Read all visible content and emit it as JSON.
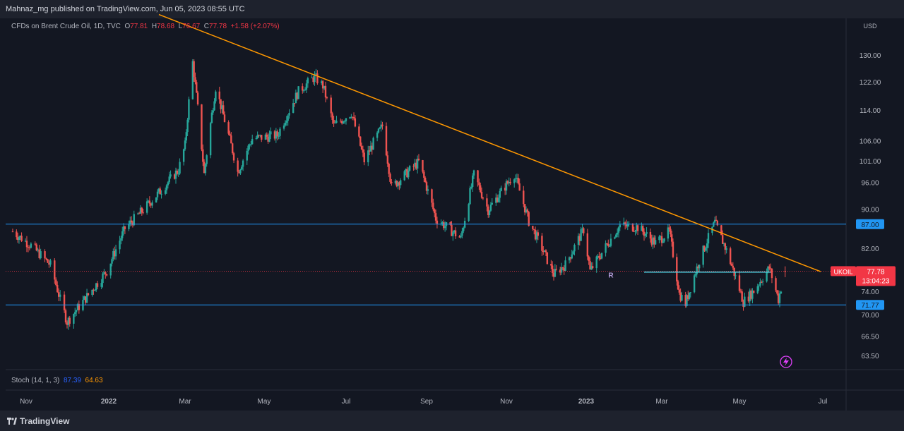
{
  "header": {
    "publisher": "Mahnaz_mg published on TradingView.com, Jun 05, 2023 08:55 UTC"
  },
  "legend": {
    "symbol": "CFDs on Brent Crude Oil, 1D, TVC",
    "open_label": "O",
    "open": "77.81",
    "high_label": "H",
    "high": "78.68",
    "low_label": "L",
    "low": "76.67",
    "close_label": "C",
    "close": "77.78",
    "change": "+1.58 (+2.07%)"
  },
  "stoch": {
    "label": "Stoch (14, 1, 3)",
    "k": "87.39",
    "d": "64.63"
  },
  "footer": {
    "brand": "TradingView"
  },
  "colors": {
    "background": "#131722",
    "up": "#26a69a",
    "down": "#ef5350",
    "trendline": "#ff9800",
    "hline": "#2196f3",
    "price_label": "#f23645"
  },
  "chart_data": {
    "type": "candlestick",
    "currency": "USD",
    "y_scale": "log",
    "yticks": [
      "130.00",
      "122.00",
      "114.00",
      "106.00",
      "101.00",
      "96.00",
      "90.00",
      "82.00",
      "74.00",
      "70.00",
      "66.50",
      "63.50"
    ],
    "xticks": [
      "Nov",
      "2022",
      "Mar",
      "May",
      "Jul",
      "Sep",
      "Nov",
      "2023",
      "Mar",
      "May",
      "Jul"
    ],
    "close_series": [
      [
        "2021-10-22",
        85.5
      ],
      [
        "2021-11-05",
        82.7
      ],
      [
        "2021-11-19",
        78.9
      ],
      [
        "2021-11-26",
        72.7
      ],
      [
        "2021-12-01",
        68.9
      ],
      [
        "2021-12-17",
        73.5
      ],
      [
        "2021-12-31",
        77.8
      ],
      [
        "2022-01-14",
        86.1
      ],
      [
        "2022-01-28",
        90.0
      ],
      [
        "2022-02-11",
        94.4
      ],
      [
        "2022-02-24",
        99.0
      ],
      [
        "2022-03-01",
        105.0
      ],
      [
        "2022-03-07",
        127.98
      ],
      [
        "2022-03-16",
        98.0
      ],
      [
        "2022-03-25",
        120.6
      ],
      [
        "2022-04-11",
        98.5
      ],
      [
        "2022-04-22",
        106.7
      ],
      [
        "2022-05-11",
        107.5
      ],
      [
        "2022-05-27",
        119.4
      ],
      [
        "2022-06-08",
        123.6
      ],
      [
        "2022-06-14",
        121.0
      ],
      [
        "2022-06-22",
        110.0
      ],
      [
        "2022-07-05",
        113.5
      ],
      [
        "2022-07-15",
        101.2
      ],
      [
        "2022-07-29",
        110.0
      ],
      [
        "2022-08-05",
        95.0
      ],
      [
        "2022-08-26",
        100.9
      ],
      [
        "2022-09-08",
        88.2
      ],
      [
        "2022-09-27",
        84.1
      ],
      [
        "2022-10-07",
        97.9
      ],
      [
        "2022-10-18",
        90.0
      ],
      [
        "2022-11-07",
        98.0
      ],
      [
        "2022-11-18",
        87.6
      ],
      [
        "2022-12-07",
        77.2
      ],
      [
        "2022-12-16",
        79.0
      ],
      [
        "2022-12-30",
        85.9
      ],
      [
        "2023-01-04",
        77.8
      ],
      [
        "2023-01-27",
        86.7
      ],
      [
        "2023-02-10",
        86.4
      ],
      [
        "2023-02-24",
        83.2
      ],
      [
        "2023-03-07",
        85.5
      ],
      [
        "2023-03-15",
        73.7
      ],
      [
        "2023-03-20",
        72.0
      ],
      [
        "2023-03-31",
        79.8
      ],
      [
        "2023-04-12",
        87.3
      ],
      [
        "2023-04-21",
        81.7
      ],
      [
        "2023-05-04",
        72.3
      ],
      [
        "2023-05-12",
        74.2
      ],
      [
        "2023-05-24",
        78.4
      ],
      [
        "2023-05-31",
        72.7
      ],
      [
        "2023-06-05",
        77.78
      ]
    ],
    "horizontal_levels": [
      87.0,
      71.77
    ],
    "resistance_segment": {
      "from": "2023-02-15",
      "to": "2023-05-25",
      "value": 77.6
    },
    "trendline": {
      "from": [
        "2022-03-07",
        139.0
      ],
      "to": [
        "2023-07-01",
        77.7
      ]
    },
    "price_labels": [
      {
        "text": "87.00",
        "value": 87.0
      },
      {
        "text": "71.77",
        "value": 71.77
      }
    ],
    "last_price": {
      "symbol_label": "UKOIL",
      "price": "77.78",
      "countdown": "13:04:23",
      "value": 77.78
    },
    "annotation": {
      "text": "R",
      "date": "2023-01-20",
      "value": 77.1
    }
  }
}
